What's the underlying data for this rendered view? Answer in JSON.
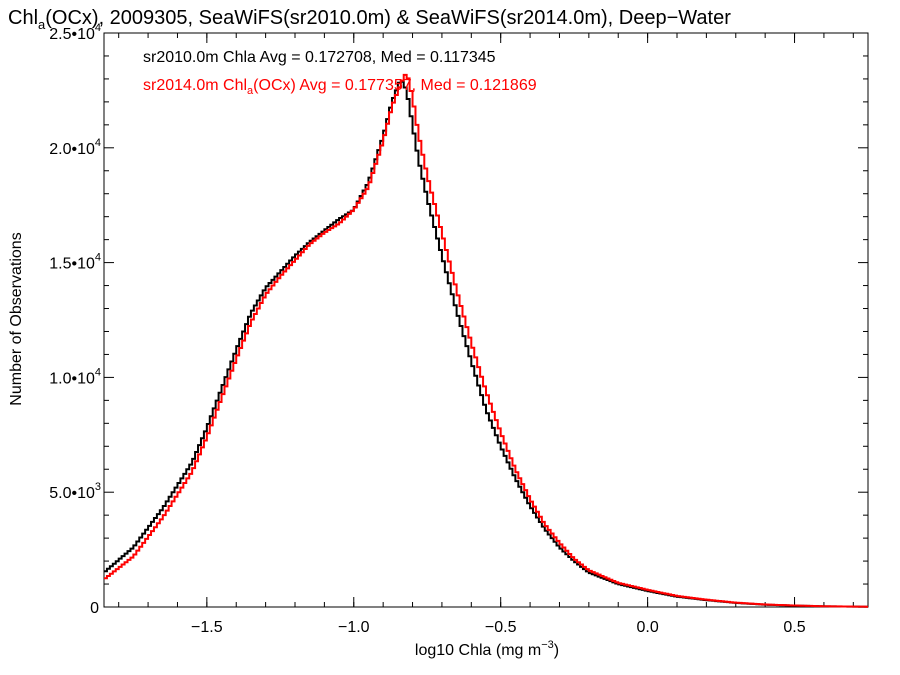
{
  "chart_data": {
    "type": "line",
    "title": {
      "prefix": "Chl",
      "sub": "a",
      "rest": "(OCx), 2009305, SeaWiFS(sr2010.0m) & SeaWiFS(sr2014.0m), Deep−Water"
    },
    "xlabel": {
      "text": "log10 Chla (mg m",
      "sup": "−3",
      "close": ")"
    },
    "ylabel": "Number of Observations",
    "xlim": [
      -1.85,
      0.75
    ],
    "ylim": [
      0,
      25000
    ],
    "x_ticks": [
      {
        "value": -1.5,
        "label": "−1.5"
      },
      {
        "value": -1.0,
        "label": "−1.0"
      },
      {
        "value": -0.5,
        "label": "−0.5"
      },
      {
        "value": 0.0,
        "label": "0.0"
      },
      {
        "value": 0.5,
        "label": "0.5"
      }
    ],
    "y_ticks": [
      {
        "value": 0,
        "mant": "0",
        "exp": ""
      },
      {
        "value": 5000,
        "mant": "5.0•10",
        "exp": "3"
      },
      {
        "value": 10000,
        "mant": "1.0•10",
        "exp": "4"
      },
      {
        "value": 15000,
        "mant": "1.5•10",
        "exp": "4"
      },
      {
        "value": 20000,
        "mant": "2.0•10",
        "exp": "4"
      },
      {
        "value": 25000,
        "mant": "2.5•10",
        "exp": "4"
      }
    ],
    "grid": false,
    "legend_placement": "top-left",
    "series": [
      {
        "name": "sr2010.0m Chla",
        "legend": "sr2010.0m Chla Avg = 0.172708, Med = 0.117345",
        "color": "#000000",
        "points": [
          [
            -1.85,
            1500
          ],
          [
            -1.75,
            2600
          ],
          [
            -1.65,
            4300
          ],
          [
            -1.55,
            6300
          ],
          [
            -1.5,
            7800
          ],
          [
            -1.45,
            9500
          ],
          [
            -1.4,
            11200
          ],
          [
            -1.35,
            12800
          ],
          [
            -1.3,
            13900
          ],
          [
            -1.25,
            14600
          ],
          [
            -1.2,
            15300
          ],
          [
            -1.15,
            15900
          ],
          [
            -1.1,
            16400
          ],
          [
            -1.05,
            16900
          ],
          [
            -1.0,
            17300
          ],
          [
            -0.95,
            18500
          ],
          [
            -0.9,
            20500
          ],
          [
            -0.87,
            22000
          ],
          [
            -0.84,
            23000
          ],
          [
            -0.82,
            22500
          ],
          [
            -0.8,
            21000
          ],
          [
            -0.78,
            19500
          ],
          [
            -0.75,
            17800
          ],
          [
            -0.7,
            15300
          ],
          [
            -0.65,
            12900
          ],
          [
            -0.6,
            10700
          ],
          [
            -0.55,
            8600
          ],
          [
            -0.5,
            7000
          ],
          [
            -0.45,
            5600
          ],
          [
            -0.4,
            4400
          ],
          [
            -0.35,
            3400
          ],
          [
            -0.3,
            2600
          ],
          [
            -0.25,
            2000
          ],
          [
            -0.2,
            1500
          ],
          [
            -0.1,
            1000
          ],
          [
            0.0,
            700
          ],
          [
            0.1,
            450
          ],
          [
            0.2,
            300
          ],
          [
            0.3,
            180
          ],
          [
            0.4,
            100
          ],
          [
            0.5,
            60
          ],
          [
            0.6,
            30
          ],
          [
            0.75,
            10
          ]
        ]
      },
      {
        "name": "sr2014.0m Chla(OCx)",
        "legend": {
          "prefix": "sr2014.0m Chl",
          "sub": "a",
          "rest": "(OCx) Avg = 0.177357, Med = 0.121869"
        },
        "color": "#ff0000",
        "points": [
          [
            -1.85,
            1200
          ],
          [
            -1.75,
            2200
          ],
          [
            -1.65,
            3900
          ],
          [
            -1.55,
            5900
          ],
          [
            -1.5,
            7400
          ],
          [
            -1.45,
            9100
          ],
          [
            -1.4,
            10800
          ],
          [
            -1.35,
            12400
          ],
          [
            -1.3,
            13600
          ],
          [
            -1.25,
            14400
          ],
          [
            -1.2,
            15100
          ],
          [
            -1.15,
            15800
          ],
          [
            -1.1,
            16300
          ],
          [
            -1.05,
            16700
          ],
          [
            -1.0,
            17300
          ],
          [
            -0.95,
            18300
          ],
          [
            -0.9,
            20300
          ],
          [
            -0.87,
            21800
          ],
          [
            -0.84,
            22800
          ],
          [
            -0.82,
            23300
          ],
          [
            -0.8,
            22200
          ],
          [
            -0.78,
            20600
          ],
          [
            -0.75,
            18800
          ],
          [
            -0.7,
            16300
          ],
          [
            -0.65,
            13800
          ],
          [
            -0.6,
            11500
          ],
          [
            -0.55,
            9400
          ],
          [
            -0.5,
            7600
          ],
          [
            -0.45,
            6000
          ],
          [
            -0.4,
            4700
          ],
          [
            -0.35,
            3600
          ],
          [
            -0.3,
            2800
          ],
          [
            -0.25,
            2100
          ],
          [
            -0.2,
            1600
          ],
          [
            -0.1,
            1050
          ],
          [
            0.0,
            750
          ],
          [
            0.1,
            480
          ],
          [
            0.2,
            320
          ],
          [
            0.3,
            190
          ],
          [
            0.4,
            110
          ],
          [
            0.5,
            65
          ],
          [
            0.6,
            32
          ],
          [
            0.75,
            12
          ]
        ]
      }
    ]
  }
}
